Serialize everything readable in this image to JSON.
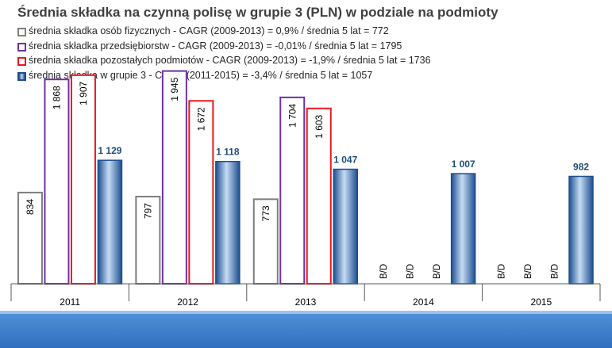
{
  "title": "Średnia składka na czynną polisę w grupie 3 (PLN) w podziale na podmioty",
  "legend": [
    "średnia składka osób fizycznych - CAGR (2009-2013) = 0,9% / średnia 5 lat = 772",
    "średnia składka przedsiębiorstw - CAGR (2009-2013) = -0,01% / średnia 5 lat = 1795",
    "średnia składka pozostałych podmiotów - CAGR (2009-2013) = -1,9% / średnia 5 lat = 1736",
    "średnia składka w grupie 3 - CAGR (2011-2015) = -3,4% / średnia 5 lat = 1057"
  ],
  "colors": {
    "osoby_fizyczne": "#7f7f7f",
    "przedsiebiorstwa": "#7030a0",
    "pozostale": "#e8191e",
    "grupa3": "#1f4e8c",
    "grupa3_label": "#1f4e79",
    "footer": "#3f7fcf"
  },
  "chart_data": {
    "type": "bar",
    "title": "Średnia składka na czynną polisę w grupie 3 (PLN) w podziale na podmioty",
    "categories": [
      "2011",
      "2012",
      "2013",
      "2014",
      "2015"
    ],
    "ylim": [
      0,
      2000
    ],
    "grid": false,
    "legend_position": "top-left",
    "missing_label": "B/D",
    "series": [
      {
        "name": "średnia składka osób fizycznych - CAGR (2009-2013) = 0,9% / średnia 5 lat = 772",
        "values": [
          834,
          797,
          773,
          null,
          null
        ],
        "labels": [
          "834",
          "797",
          "773",
          "B/D",
          "B/D"
        ]
      },
      {
        "name": "średnia składka przedsiębiorstw - CAGR (2009-2013) = -0,01% / średnia 5 lat = 1795",
        "values": [
          1868,
          1945,
          1704,
          null,
          null
        ],
        "labels": [
          "1 868",
          "1 945",
          "1 704",
          "B/D",
          "B/D"
        ]
      },
      {
        "name": "średnia składka pozostałych podmiotów - CAGR (2009-2013) = -1,9% / średnia 5 lat = 1736",
        "values": [
          1907,
          1672,
          1603,
          null,
          null
        ],
        "labels": [
          "1 907",
          "1 672",
          "1 603",
          "B/D",
          "B/D"
        ]
      },
      {
        "name": "średnia składka w grupie 3 - CAGR (2011-2015) = -3,4% / średnia 5 lat = 1057",
        "values": [
          1129,
          1118,
          1047,
          1007,
          982
        ],
        "labels": [
          "1 129",
          "1 118",
          "1 047",
          "1 007",
          "982"
        ]
      }
    ]
  }
}
